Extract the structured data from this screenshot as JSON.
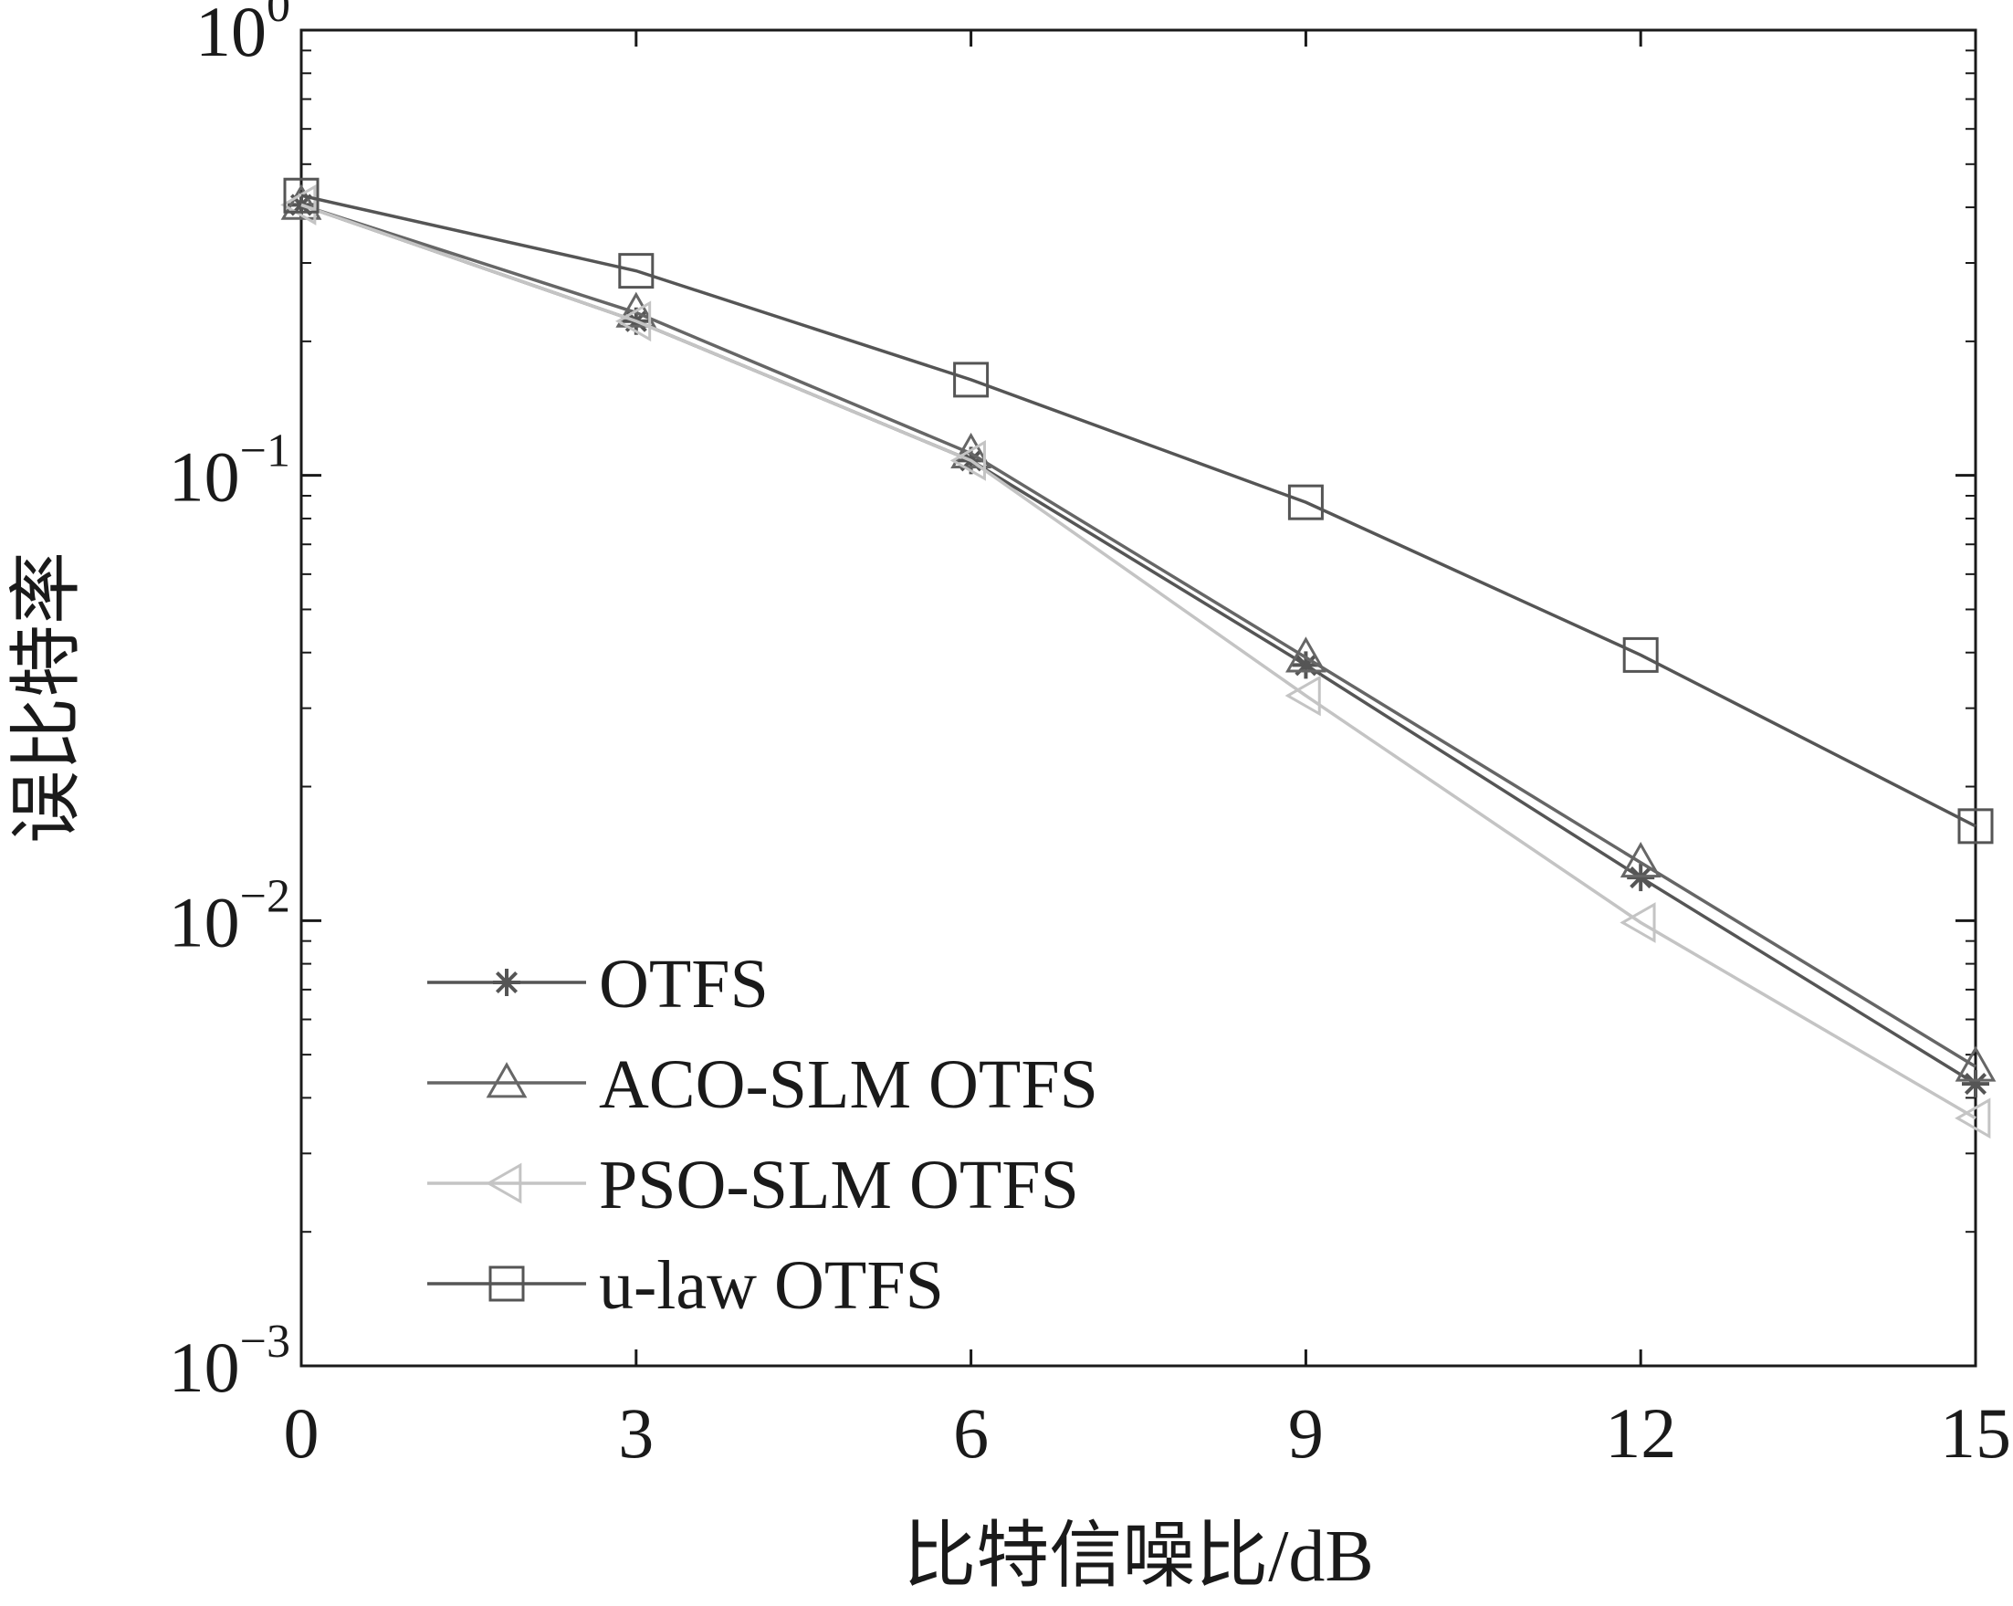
{
  "chart_data": {
    "type": "line",
    "title": "",
    "xlabel": "比特信噪比/dB",
    "ylabel": "误比特率",
    "x_ticks": [
      "0",
      "3",
      "6",
      "9",
      "12",
      "15"
    ],
    "y_ticks": [
      {
        "base": "10",
        "exp": "0",
        "value": 1
      },
      {
        "base": "10",
        "exp": "−1",
        "value": 0.1
      },
      {
        "base": "10",
        "exp": "−2",
        "value": 0.01
      },
      {
        "base": "10",
        "exp": "−3",
        "value": 0.001
      }
    ],
    "xlim": [
      0,
      15
    ],
    "ylim": [
      0.001,
      1
    ],
    "y_scale": "log",
    "grid": false,
    "legend_position": "bottom-left",
    "x": [
      0,
      3,
      6,
      9,
      12,
      15
    ],
    "series": [
      {
        "name": "OTFS",
        "marker": "star",
        "color": "#555555",
        "values": [
          0.405,
          0.222,
          0.108,
          0.0375,
          0.0125,
          0.0043
        ]
      },
      {
        "name": "ACO-SLM OTFS",
        "marker": "triangle-up",
        "color": "#666666",
        "values": [
          0.405,
          0.232,
          0.112,
          0.039,
          0.0135,
          0.0047
        ]
      },
      {
        "name": "PSO-SLM OTFS",
        "marker": "triangle-left",
        "color": "#c4c4c4",
        "values": [
          0.405,
          0.222,
          0.108,
          0.032,
          0.0099,
          0.0036
        ]
      },
      {
        "name": "u-law OTFS",
        "marker": "square",
        "color": "#555555",
        "values": [
          0.425,
          0.288,
          0.164,
          0.087,
          0.0395,
          0.0163
        ]
      }
    ]
  }
}
